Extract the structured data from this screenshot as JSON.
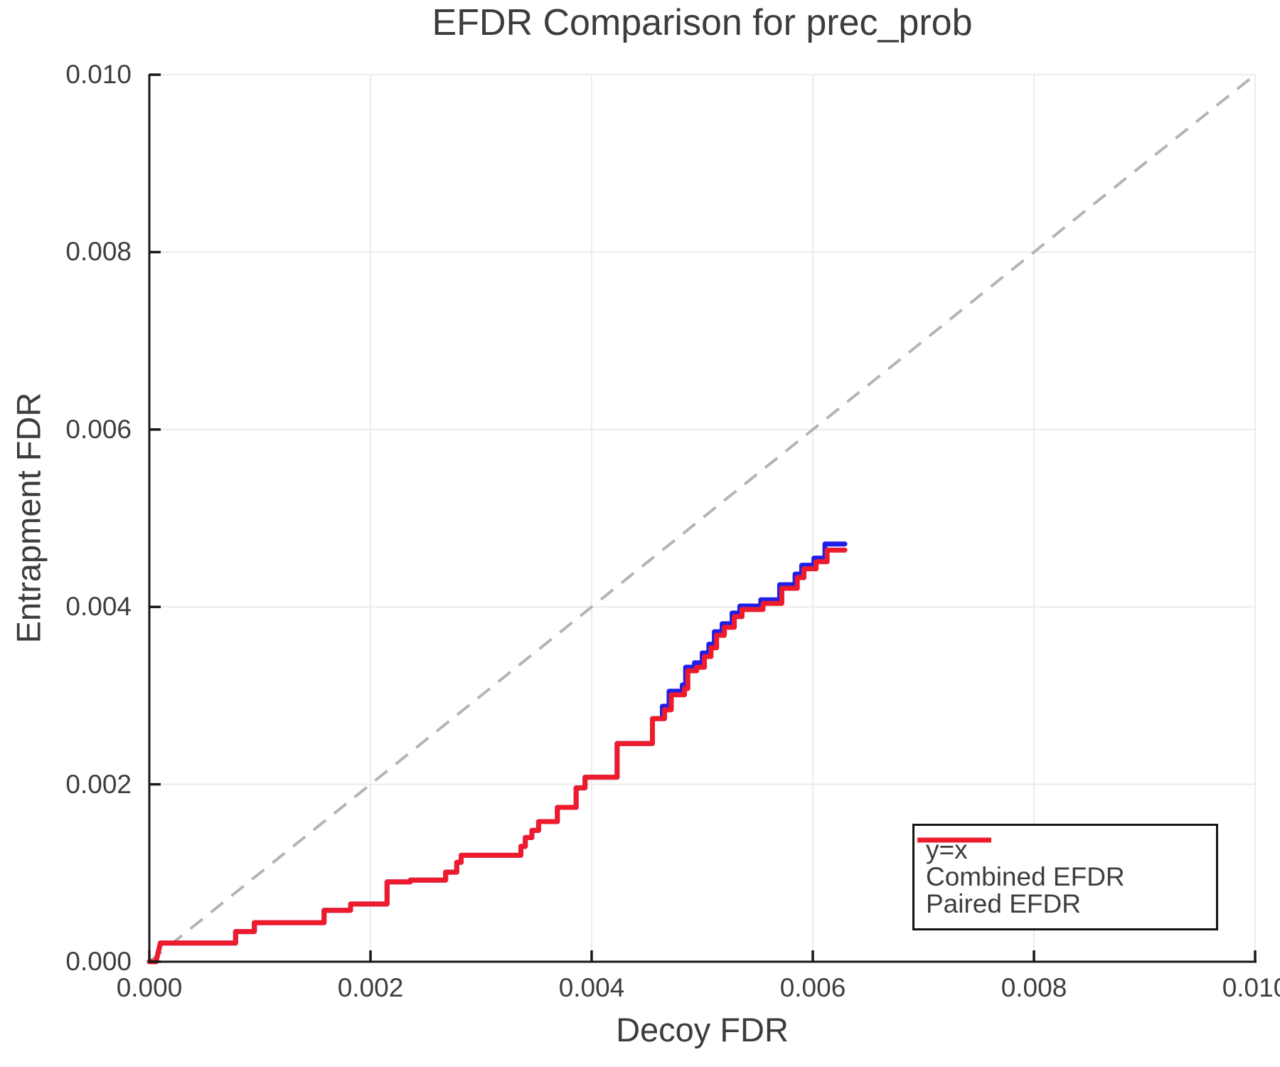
{
  "chart_data": {
    "type": "line",
    "title": "EFDR Comparison for prec_prob",
    "xlabel": "Decoy FDR",
    "ylabel": "Entrapment FDR",
    "xlim": [
      0.0,
      0.01
    ],
    "ylim": [
      0.0,
      0.01
    ],
    "grid": true,
    "x_ticks": {
      "values": [
        0.0,
        0.002,
        0.004,
        0.006,
        0.008,
        0.01
      ],
      "labels": [
        "0.000",
        "0.002",
        "0.004",
        "0.006",
        "0.008",
        "0.010"
      ]
    },
    "y_ticks": {
      "values": [
        0.0,
        0.002,
        0.004,
        0.006,
        0.008,
        0.01
      ],
      "labels": [
        "0.000",
        "0.002",
        "0.004",
        "0.006",
        "0.008",
        "0.010"
      ]
    },
    "colors": {
      "grid": "#ececec",
      "spine": "#181818",
      "text": "#3d3d3d",
      "identity_line": "#b4b4b4",
      "combined": "#1f1fe8",
      "paired": "#ee1b2d"
    },
    "identity_line": {
      "label": "y=x",
      "from": [
        0.0,
        0.0
      ],
      "to": [
        0.01,
        0.01
      ],
      "style": "dashed"
    },
    "legend": {
      "position": "lower right",
      "items": [
        {
          "label": "y=x",
          "color": "#b4b4b4",
          "style": "dashed"
        },
        {
          "label": "Combined EFDR",
          "color": "#1f1fe8",
          "style": "solid"
        },
        {
          "label": "Paired EFDR",
          "color": "#ee1b2d",
          "style": "solid"
        }
      ]
    },
    "series": [
      {
        "name": "Combined EFDR",
        "color": "#1f1fe8",
        "points": [
          [
            0.0,
            0.0
          ],
          [
            6e-05,
            0.0
          ],
          [
            0.0001,
            0.00021
          ],
          [
            0.00078,
            0.00021
          ],
          [
            0.00078,
            0.00034
          ],
          [
            0.00095,
            0.00034
          ],
          [
            0.00095,
            0.00044
          ],
          [
            0.00158,
            0.00044
          ],
          [
            0.00158,
            0.00058
          ],
          [
            0.00182,
            0.00058
          ],
          [
            0.00182,
            0.00065
          ],
          [
            0.00215,
            0.00065
          ],
          [
            0.00215,
            0.0009
          ],
          [
            0.00236,
            0.0009
          ],
          [
            0.00236,
            0.00092
          ],
          [
            0.00268,
            0.00092
          ],
          [
            0.00268,
            0.00101
          ],
          [
            0.00278,
            0.00101
          ],
          [
            0.00278,
            0.00112
          ],
          [
            0.00282,
            0.00112
          ],
          [
            0.00282,
            0.0012
          ],
          [
            0.00336,
            0.0012
          ],
          [
            0.00336,
            0.0013
          ],
          [
            0.0034,
            0.0013
          ],
          [
            0.0034,
            0.0014
          ],
          [
            0.00346,
            0.0014
          ],
          [
            0.00346,
            0.00148
          ],
          [
            0.00352,
            0.00148
          ],
          [
            0.00352,
            0.00158
          ],
          [
            0.00369,
            0.00158
          ],
          [
            0.00369,
            0.00174
          ],
          [
            0.00386,
            0.00174
          ],
          [
            0.00386,
            0.00196
          ],
          [
            0.00394,
            0.00196
          ],
          [
            0.00394,
            0.00208
          ],
          [
            0.00423,
            0.00208
          ],
          [
            0.00423,
            0.00246
          ],
          [
            0.00455,
            0.00246
          ],
          [
            0.00455,
            0.00274
          ],
          [
            0.00464,
            0.00274
          ],
          [
            0.00464,
            0.00288
          ],
          [
            0.0047,
            0.00288
          ],
          [
            0.0047,
            0.00305
          ],
          [
            0.00482,
            0.00305
          ],
          [
            0.00482,
            0.00312
          ],
          [
            0.00485,
            0.00312
          ],
          [
            0.00485,
            0.00332
          ],
          [
            0.00493,
            0.00332
          ],
          [
            0.00493,
            0.00337
          ],
          [
            0.005,
            0.00337
          ],
          [
            0.005,
            0.00348
          ],
          [
            0.00506,
            0.00348
          ],
          [
            0.00506,
            0.00358
          ],
          [
            0.00511,
            0.00358
          ],
          [
            0.00511,
            0.00372
          ],
          [
            0.00518,
            0.00372
          ],
          [
            0.00518,
            0.00381
          ],
          [
            0.00527,
            0.00381
          ],
          [
            0.00527,
            0.00393
          ],
          [
            0.00534,
            0.00393
          ],
          [
            0.00534,
            0.00401
          ],
          [
            0.00553,
            0.00401
          ],
          [
            0.00553,
            0.00408
          ],
          [
            0.0057,
            0.00408
          ],
          [
            0.0057,
            0.00425
          ],
          [
            0.00584,
            0.00425
          ],
          [
            0.00584,
            0.00437
          ],
          [
            0.0059,
            0.00437
          ],
          [
            0.0059,
            0.00447
          ],
          [
            0.00601,
            0.00447
          ],
          [
            0.00601,
            0.00455
          ],
          [
            0.00611,
            0.00455
          ],
          [
            0.00611,
            0.00471
          ],
          [
            0.00629,
            0.00471
          ]
        ]
      },
      {
        "name": "Paired EFDR",
        "color": "#ee1b2d",
        "points": [
          [
            0.0,
            0.0
          ],
          [
            6e-05,
            0.0
          ],
          [
            0.0001,
            0.00021
          ],
          [
            0.00078,
            0.00021
          ],
          [
            0.00078,
            0.00034
          ],
          [
            0.00095,
            0.00034
          ],
          [
            0.00095,
            0.00044
          ],
          [
            0.00158,
            0.00044
          ],
          [
            0.00158,
            0.00058
          ],
          [
            0.00182,
            0.00058
          ],
          [
            0.00182,
            0.00065
          ],
          [
            0.00215,
            0.00065
          ],
          [
            0.00215,
            0.0009
          ],
          [
            0.00236,
            0.0009
          ],
          [
            0.00236,
            0.00092
          ],
          [
            0.00268,
            0.00092
          ],
          [
            0.00268,
            0.00101
          ],
          [
            0.00278,
            0.00101
          ],
          [
            0.00278,
            0.00112
          ],
          [
            0.00282,
            0.00112
          ],
          [
            0.00282,
            0.0012
          ],
          [
            0.00336,
            0.0012
          ],
          [
            0.00336,
            0.0013
          ],
          [
            0.0034,
            0.0013
          ],
          [
            0.0034,
            0.0014
          ],
          [
            0.00346,
            0.0014
          ],
          [
            0.00346,
            0.00148
          ],
          [
            0.00352,
            0.00148
          ],
          [
            0.00352,
            0.00158
          ],
          [
            0.00369,
            0.00158
          ],
          [
            0.00369,
            0.00174
          ],
          [
            0.00386,
            0.00174
          ],
          [
            0.00386,
            0.00196
          ],
          [
            0.00394,
            0.00196
          ],
          [
            0.00394,
            0.00208
          ],
          [
            0.00423,
            0.00208
          ],
          [
            0.00423,
            0.00246
          ],
          [
            0.00455,
            0.00246
          ],
          [
            0.00455,
            0.00274
          ],
          [
            0.00466,
            0.00274
          ],
          [
            0.00466,
            0.00284
          ],
          [
            0.00472,
            0.00284
          ],
          [
            0.00472,
            0.00301
          ],
          [
            0.00484,
            0.00301
          ],
          [
            0.00484,
            0.00308
          ],
          [
            0.00487,
            0.00308
          ],
          [
            0.00487,
            0.00328
          ],
          [
            0.00495,
            0.00328
          ],
          [
            0.00495,
            0.00332
          ],
          [
            0.00502,
            0.00332
          ],
          [
            0.00502,
            0.00344
          ],
          [
            0.00508,
            0.00344
          ],
          [
            0.00508,
            0.00354
          ],
          [
            0.00513,
            0.00354
          ],
          [
            0.00513,
            0.00368
          ],
          [
            0.0052,
            0.00368
          ],
          [
            0.0052,
            0.00377
          ],
          [
            0.00529,
            0.00377
          ],
          [
            0.00529,
            0.00389
          ],
          [
            0.00536,
            0.00389
          ],
          [
            0.00536,
            0.00397
          ],
          [
            0.00555,
            0.00397
          ],
          [
            0.00555,
            0.00404
          ],
          [
            0.00572,
            0.00404
          ],
          [
            0.00572,
            0.00421
          ],
          [
            0.00586,
            0.00421
          ],
          [
            0.00586,
            0.00433
          ],
          [
            0.00592,
            0.00433
          ],
          [
            0.00592,
            0.00443
          ],
          [
            0.00603,
            0.00443
          ],
          [
            0.00603,
            0.00451
          ],
          [
            0.00613,
            0.00451
          ],
          [
            0.00613,
            0.00464
          ],
          [
            0.00629,
            0.00464
          ]
        ]
      }
    ]
  }
}
